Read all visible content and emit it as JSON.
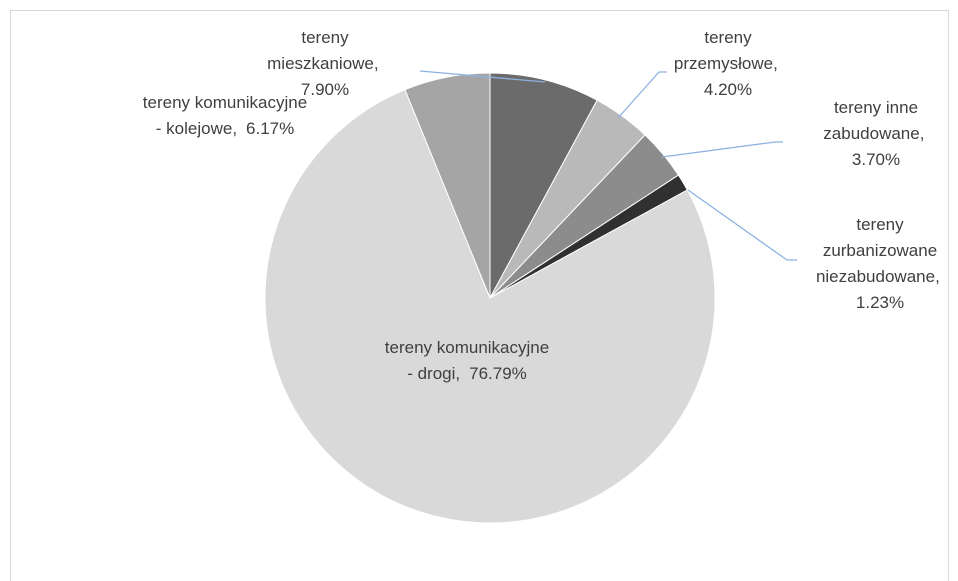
{
  "chart_data": {
    "type": "pie",
    "categories": [
      "tereny mieszkaniowe",
      "tereny przemysłowe",
      "tereny inne zabudowane",
      "tereny zurbanizowane niezabudowane",
      "tereny komunikacyjne - drogi",
      "tereny komunikacyjne - kolejowe"
    ],
    "values": [
      7.9,
      4.2,
      3.7,
      1.23,
      76.79,
      6.17
    ],
    "value_labels": [
      "7.90%",
      "4.20%",
      "3.70%",
      "1.23%",
      "76.79%",
      "6.17%"
    ],
    "colors": [
      "#6b6b6b",
      "#b9b9b9",
      "#8c8c8c",
      "#303030",
      "#d9d9d9",
      "#a5a5a5"
    ]
  }
}
